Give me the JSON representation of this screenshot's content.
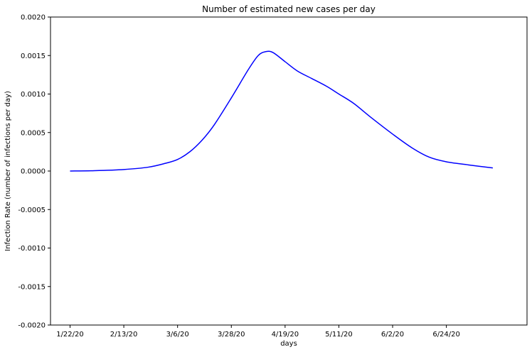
{
  "chart_data": {
    "type": "line",
    "title": "Number of estimated new cases per day",
    "xlabel": "days",
    "ylabel": "Infection Rate (number of infections per day)",
    "x_ticks": [
      "1/22/20",
      "2/13/20",
      "3/6/20",
      "3/28/20",
      "4/19/20",
      "5/11/20",
      "6/2/20",
      "6/24/20"
    ],
    "y_ticks": [
      "-0.0020",
      "-0.0015",
      "-0.0010",
      "-0.0005",
      "0.0000",
      "0.0005",
      "0.0010",
      "0.0015",
      "0.0020"
    ],
    "ylim": [
      -0.002,
      0.002
    ],
    "xlim": [
      "2020-01-14",
      "2020-07-27"
    ],
    "grid": false,
    "series": [
      {
        "color": "#0000ff",
        "x": [
          "2020-01-22",
          "2020-02-01",
          "2020-02-13",
          "2020-02-23",
          "2020-03-01",
          "2020-03-06",
          "2020-03-11",
          "2020-03-16",
          "2020-03-21",
          "2020-03-28",
          "2020-04-04",
          "2020-04-08",
          "2020-04-11",
          "2020-04-14",
          "2020-04-19",
          "2020-04-24",
          "2020-04-30",
          "2020-05-06",
          "2020-05-11",
          "2020-05-17",
          "2020-05-24",
          "2020-06-02",
          "2020-06-10",
          "2020-06-17",
          "2020-06-24",
          "2020-07-03",
          "2020-07-13"
        ],
        "y": [
          0.0,
          5e-06,
          2e-05,
          5e-05,
          0.0001,
          0.00015,
          0.00025,
          0.0004,
          0.0006,
          0.00095,
          0.00132,
          0.0015,
          0.00155,
          0.00154,
          0.00142,
          0.0013,
          0.0012,
          0.0011,
          0.001,
          0.00088,
          0.0007,
          0.00048,
          0.0003,
          0.00018,
          0.00012,
          8e-05,
          4e-05
        ]
      }
    ]
  }
}
